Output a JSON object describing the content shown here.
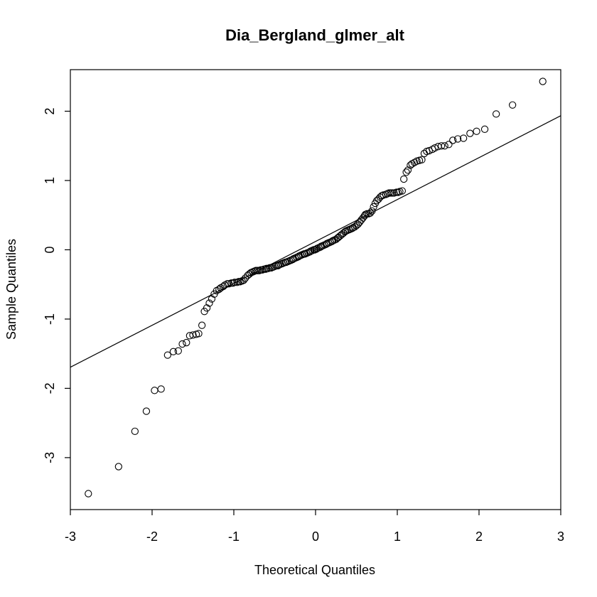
{
  "chart_data": {
    "type": "scatter",
    "title": "Dia_Bergland_glmer_alt",
    "xlabel": "Theoretical Quantiles",
    "ylabel": "Sample Quantiles",
    "xlim": [
      -3.0,
      3.0
    ],
    "ylim": [
      -3.75,
      2.6
    ],
    "x_ticks": [
      -3,
      -2,
      -1,
      0,
      1,
      2,
      3
    ],
    "y_ticks": [
      -3,
      -2,
      -1,
      0,
      1,
      2
    ],
    "x_tick_labels": [
      "-3",
      "-2",
      "-1",
      "0",
      "1",
      "2",
      "3"
    ],
    "y_tick_labels": [
      "-3",
      "-2",
      "-1",
      "0",
      "1",
      "2"
    ],
    "grid": false,
    "marker": "open-circle",
    "series": [
      {
        "points": [
          [
            -2.78,
            -3.52
          ],
          [
            -2.41,
            -3.13
          ],
          [
            -2.21,
            -2.62
          ],
          [
            -2.07,
            -2.33
          ],
          [
            -1.97,
            -2.03
          ],
          [
            -1.89,
            -2.01
          ],
          [
            -1.81,
            -1.52
          ],
          [
            -1.74,
            -1.47
          ],
          [
            -1.68,
            -1.46
          ],
          [
            -1.63,
            -1.36
          ],
          [
            -1.58,
            -1.34
          ],
          [
            -1.54,
            -1.24
          ],
          [
            -1.5,
            -1.23
          ],
          [
            -1.46,
            -1.22
          ],
          [
            -1.43,
            -1.21
          ],
          [
            -1.39,
            -1.09
          ],
          [
            -1.36,
            -0.89
          ],
          [
            -1.33,
            -0.84
          ],
          [
            -1.3,
            -0.77
          ],
          [
            -1.27,
            -0.71
          ],
          [
            -1.24,
            -0.64
          ],
          [
            -1.21,
            -0.59
          ],
          [
            -1.18,
            -0.57
          ],
          [
            -1.16,
            -0.55
          ],
          [
            -1.13,
            -0.53
          ],
          [
            -1.11,
            -0.51
          ],
          [
            -1.08,
            -0.49
          ],
          [
            -1.06,
            -0.49
          ],
          [
            -1.03,
            -0.48
          ],
          [
            -1.01,
            -0.48
          ],
          [
            -0.99,
            -0.47
          ],
          [
            -0.96,
            -0.47
          ],
          [
            -0.94,
            -0.46
          ],
          [
            -0.92,
            -0.46
          ],
          [
            -0.9,
            -0.45
          ],
          [
            -0.88,
            -0.44
          ],
          [
            -0.86,
            -0.41
          ],
          [
            -0.83,
            -0.37
          ],
          [
            -0.81,
            -0.35
          ],
          [
            -0.79,
            -0.33
          ],
          [
            -0.77,
            -0.32
          ],
          [
            -0.75,
            -0.31
          ],
          [
            -0.73,
            -0.3
          ],
          [
            -0.71,
            -0.3
          ],
          [
            -0.69,
            -0.3
          ],
          [
            -0.67,
            -0.29
          ],
          [
            -0.65,
            -0.29
          ],
          [
            -0.63,
            -0.28
          ],
          [
            -0.61,
            -0.28
          ],
          [
            -0.6,
            -0.27
          ],
          [
            -0.58,
            -0.27
          ],
          [
            -0.56,
            -0.26
          ],
          [
            -0.54,
            -0.26
          ],
          [
            -0.52,
            -0.25
          ],
          [
            -0.5,
            -0.24
          ],
          [
            -0.48,
            -0.23
          ],
          [
            -0.46,
            -0.23
          ],
          [
            -0.45,
            -0.22
          ],
          [
            -0.43,
            -0.21
          ],
          [
            -0.41,
            -0.2
          ],
          [
            -0.39,
            -0.19
          ],
          [
            -0.37,
            -0.18
          ],
          [
            -0.36,
            -0.18
          ],
          [
            -0.34,
            -0.17
          ],
          [
            -0.32,
            -0.16
          ],
          [
            -0.3,
            -0.15
          ],
          [
            -0.28,
            -0.14
          ],
          [
            -0.27,
            -0.13
          ],
          [
            -0.25,
            -0.12
          ],
          [
            -0.23,
            -0.11
          ],
          [
            -0.21,
            -0.1
          ],
          [
            -0.2,
            -0.09
          ],
          [
            -0.18,
            -0.08
          ],
          [
            -0.16,
            -0.07
          ],
          [
            -0.14,
            -0.06
          ],
          [
            -0.13,
            -0.06
          ],
          [
            -0.11,
            -0.05
          ],
          [
            -0.09,
            -0.04
          ],
          [
            -0.07,
            -0.03
          ],
          [
            -0.06,
            -0.02
          ],
          [
            -0.04,
            -0.01
          ],
          [
            -0.02,
            0.0
          ],
          [
            -0.01,
            0.0
          ],
          [
            0.01,
            0.01
          ],
          [
            0.02,
            0.02
          ],
          [
            0.04,
            0.03
          ],
          [
            0.06,
            0.04
          ],
          [
            0.07,
            0.05
          ],
          [
            0.09,
            0.06
          ],
          [
            0.11,
            0.07
          ],
          [
            0.13,
            0.08
          ],
          [
            0.14,
            0.09
          ],
          [
            0.16,
            0.1
          ],
          [
            0.18,
            0.11
          ],
          [
            0.2,
            0.12
          ],
          [
            0.21,
            0.13
          ],
          [
            0.23,
            0.14
          ],
          [
            0.25,
            0.15
          ],
          [
            0.27,
            0.17
          ],
          [
            0.28,
            0.18
          ],
          [
            0.3,
            0.2
          ],
          [
            0.32,
            0.22
          ],
          [
            0.34,
            0.24
          ],
          [
            0.36,
            0.26
          ],
          [
            0.37,
            0.27
          ],
          [
            0.39,
            0.28
          ],
          [
            0.41,
            0.29
          ],
          [
            0.43,
            0.3
          ],
          [
            0.45,
            0.31
          ],
          [
            0.46,
            0.32
          ],
          [
            0.48,
            0.33
          ],
          [
            0.5,
            0.35
          ],
          [
            0.52,
            0.37
          ],
          [
            0.54,
            0.4
          ],
          [
            0.56,
            0.43
          ],
          [
            0.58,
            0.46
          ],
          [
            0.6,
            0.49
          ],
          [
            0.61,
            0.51
          ],
          [
            0.63,
            0.52
          ],
          [
            0.65,
            0.52
          ],
          [
            0.67,
            0.53
          ],
          [
            0.69,
            0.56
          ],
          [
            0.71,
            0.62
          ],
          [
            0.73,
            0.67
          ],
          [
            0.75,
            0.71
          ],
          [
            0.77,
            0.73
          ],
          [
            0.79,
            0.76
          ],
          [
            0.81,
            0.78
          ],
          [
            0.83,
            0.79
          ],
          [
            0.86,
            0.8
          ],
          [
            0.88,
            0.81
          ],
          [
            0.9,
            0.82
          ],
          [
            0.92,
            0.82
          ],
          [
            0.94,
            0.82
          ],
          [
            0.96,
            0.82
          ],
          [
            0.99,
            0.83
          ],
          [
            1.01,
            0.83
          ],
          [
            1.03,
            0.84
          ],
          [
            1.06,
            0.85
          ],
          [
            1.08,
            1.02
          ],
          [
            1.11,
            1.12
          ],
          [
            1.13,
            1.15
          ],
          [
            1.16,
            1.22
          ],
          [
            1.18,
            1.24
          ],
          [
            1.21,
            1.26
          ],
          [
            1.24,
            1.28
          ],
          [
            1.27,
            1.29
          ],
          [
            1.3,
            1.3
          ],
          [
            1.33,
            1.39
          ],
          [
            1.36,
            1.42
          ],
          [
            1.39,
            1.43
          ],
          [
            1.43,
            1.45
          ],
          [
            1.46,
            1.47
          ],
          [
            1.5,
            1.49
          ],
          [
            1.54,
            1.5
          ],
          [
            1.58,
            1.5
          ],
          [
            1.63,
            1.52
          ],
          [
            1.68,
            1.58
          ],
          [
            1.74,
            1.6
          ],
          [
            1.81,
            1.61
          ],
          [
            1.89,
            1.68
          ],
          [
            1.97,
            1.71
          ],
          [
            2.07,
            1.74
          ],
          [
            2.21,
            1.96
          ],
          [
            2.41,
            2.09
          ],
          [
            2.78,
            2.43
          ]
        ]
      }
    ],
    "reference_line": {
      "intercept": 0.12,
      "slope": 0.605
    },
    "colors": {
      "points": "#000000",
      "line": "#000000",
      "axes": "#000000",
      "background": "#ffffff"
    }
  }
}
